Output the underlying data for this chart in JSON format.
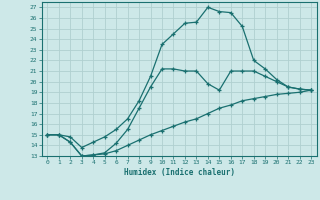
{
  "xlabel": "Humidex (Indice chaleur)",
  "bg_color": "#cde8e8",
  "grid_color": "#b0d0d0",
  "line_color": "#1a7070",
  "xlim": [
    -0.5,
    23.5
  ],
  "ylim": [
    13,
    27.5
  ],
  "xticks": [
    0,
    1,
    2,
    3,
    4,
    5,
    6,
    7,
    8,
    9,
    10,
    11,
    12,
    13,
    14,
    15,
    16,
    17,
    18,
    19,
    20,
    21,
    22,
    23
  ],
  "yticks": [
    13,
    14,
    15,
    16,
    17,
    18,
    19,
    20,
    21,
    22,
    23,
    24,
    25,
    26,
    27
  ],
  "curve1_x": [
    0,
    1,
    2,
    3,
    4,
    5,
    6,
    7,
    8,
    9,
    10,
    11,
    12,
    13,
    14,
    15,
    16,
    17,
    18,
    19,
    20,
    21,
    22,
    23
  ],
  "curve1_y": [
    15.0,
    15.0,
    14.8,
    13.8,
    14.3,
    14.8,
    15.5,
    16.5,
    18.2,
    20.5,
    23.5,
    24.5,
    25.5,
    25.6,
    27.0,
    26.6,
    26.5,
    25.2,
    22.0,
    21.2,
    20.2,
    19.5,
    19.3,
    19.2
  ],
  "curve2_x": [
    0,
    1,
    2,
    3,
    4,
    5,
    6,
    7,
    8,
    9,
    10,
    11,
    12,
    13,
    14,
    15,
    16,
    17,
    18,
    19,
    20,
    21,
    22,
    23
  ],
  "curve2_y": [
    15.0,
    15.0,
    14.3,
    13.0,
    13.1,
    13.3,
    14.2,
    15.5,
    17.5,
    19.5,
    21.2,
    21.2,
    21.0,
    21.0,
    19.8,
    19.2,
    21.0,
    21.0,
    21.0,
    20.5,
    20.0,
    19.5,
    19.3,
    19.2
  ],
  "curve3_x": [
    0,
    1,
    2,
    3,
    4,
    5,
    6,
    7,
    8,
    9,
    10,
    11,
    12,
    13,
    14,
    15,
    16,
    17,
    18,
    19,
    20,
    21,
    22,
    23
  ],
  "curve3_y": [
    15.0,
    15.0,
    14.3,
    13.0,
    13.1,
    13.2,
    13.5,
    14.0,
    14.5,
    15.0,
    15.4,
    15.8,
    16.2,
    16.5,
    17.0,
    17.5,
    17.8,
    18.2,
    18.4,
    18.6,
    18.8,
    18.9,
    19.0,
    19.2
  ]
}
